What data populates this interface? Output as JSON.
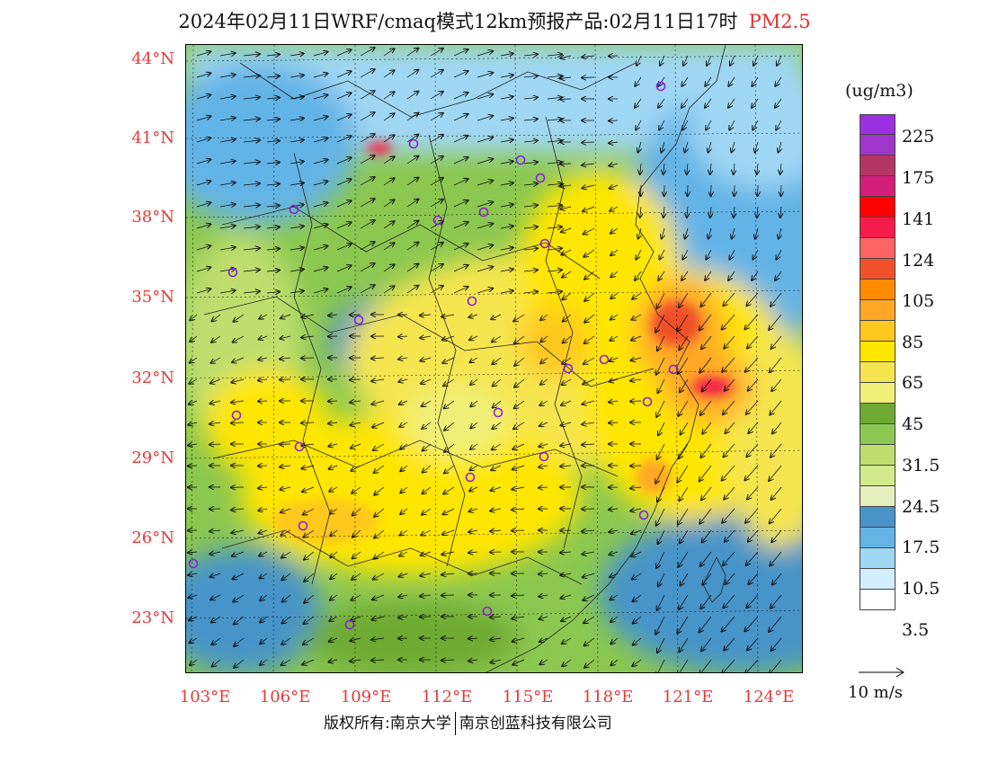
{
  "title": {
    "main": "2024年02月11日WRF/cmaq模式12km预报产品:02月11日17时",
    "pollutant": "PM2.5"
  },
  "lat_labels": [
    "44°N",
    "41°N",
    "38°N",
    "35°N",
    "32°N",
    "29°N",
    "26°N",
    "23°N"
  ],
  "lon_labels": [
    "103°E",
    "106°E",
    "109°E",
    "112°E",
    "115°E",
    "118°E",
    "121°E",
    "124°E"
  ],
  "legend": {
    "unit": "(ug/m3)",
    "colors": [
      "#9b30e0",
      "#a036c9",
      "#b43662",
      "#d41e7c",
      "#ff0000",
      "#f51c4b",
      "#ff6464",
      "#f0502a",
      "#ff8c00",
      "#ffa828",
      "#ffc81e",
      "#ffe600",
      "#f5e650",
      "#f0f078",
      "#6eaa32",
      "#8cc850",
      "#bede6e",
      "#d2eb8c",
      "#e6f0be",
      "#4694c8",
      "#64b4e6",
      "#a0d7f5",
      "#d2eefa",
      "#ffffff"
    ],
    "labels": [
      "225",
      "175",
      "141",
      "124",
      "105",
      "85",
      "65",
      "45",
      "31.5",
      "24.5",
      "17.5",
      "10.5",
      "3.5"
    ]
  },
  "wind_scale": "10 m/s",
  "footer": {
    "left": "版权所有:南京大学",
    "right": "南京创蓝科技有限公司"
  }
}
